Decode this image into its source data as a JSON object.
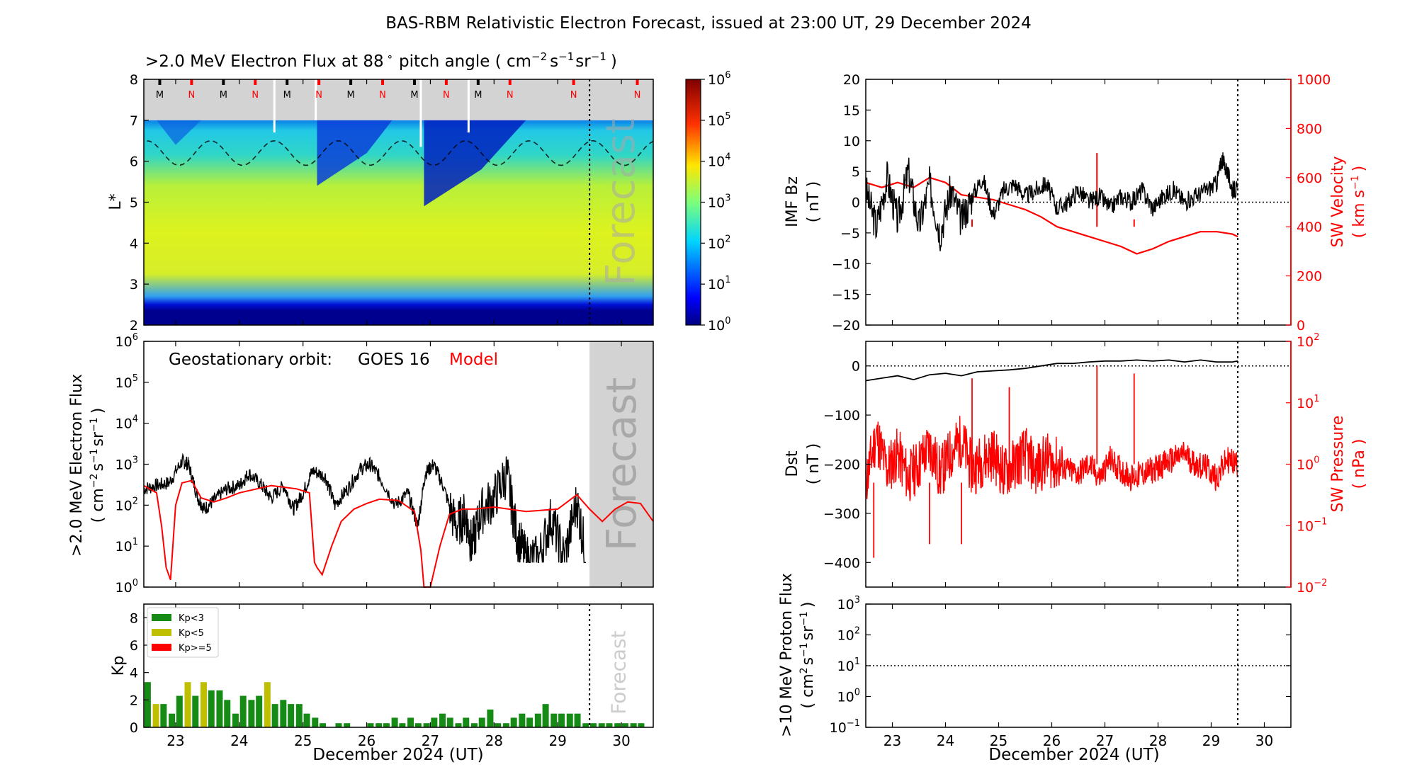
{
  "title": "BAS-RBM Relativistic Electron Forecast, issued at 23:00 UT, 29 December 2024",
  "colors": {
    "observed": "#000000",
    "model": "#ff0000",
    "forecast_shade": "#d3d3d3",
    "kp_low": "#158a15",
    "kp_mid": "#bfbf00",
    "kp_high": "#ff0000",
    "model_label": "#ff0000",
    "forecast_text": "#a9a9a9"
  },
  "chart_data": [
    {
      "id": "lstar",
      "type": "heatmap",
      "title_main": ">2.0 MeV Electron Flux at 88",
      "title_deg": "∘",
      "title_unit": "pitch angle ( cm",
      "title_sup1": "−2",
      "title_mid1": "s",
      "title_sup2": "−1",
      "title_mid2": "sr",
      "title_sup3": "−1",
      "title_end": ")",
      "ylabel": "L*",
      "ylim": [
        2,
        8
      ],
      "yticks": [
        "2",
        "3",
        "4",
        "5",
        "6",
        "7",
        "8"
      ],
      "xlim": [
        22.5,
        30.5
      ],
      "forecast_start": 29.5,
      "forecast_label": "Forecast",
      "orbit_markers": [
        {
          "x": 22.75,
          "label": "M",
          "kind": "M"
        },
        {
          "x": 23.25,
          "label": "N",
          "kind": "N"
        },
        {
          "x": 23.75,
          "label": "M",
          "kind": "M"
        },
        {
          "x": 24.25,
          "label": "N",
          "kind": "N"
        },
        {
          "x": 24.75,
          "label": "M",
          "kind": "M"
        },
        {
          "x": 25.25,
          "label": "N",
          "kind": "N"
        },
        {
          "x": 25.75,
          "label": "M",
          "kind": "M"
        },
        {
          "x": 26.25,
          "label": "N",
          "kind": "N"
        },
        {
          "x": 26.75,
          "label": "M",
          "kind": "M"
        },
        {
          "x": 27.25,
          "label": "N",
          "kind": "N"
        },
        {
          "x": 27.75,
          "label": "M",
          "kind": "M"
        },
        {
          "x": 28.25,
          "label": "N",
          "kind": "N"
        },
        {
          "x": 29.25,
          "label": "N",
          "kind": "N"
        },
        {
          "x": 30.25,
          "label": "N",
          "kind": "N"
        }
      ],
      "colorbar": {
        "label_base": "10",
        "exponents": [
          "0",
          "1",
          "2",
          "3",
          "4",
          "5",
          "6"
        ],
        "range_log10": [
          0,
          6
        ]
      }
    },
    {
      "id": "goes",
      "type": "line",
      "label_orbit": "Geostationary orbit:",
      "label_sat": "GOES 16",
      "label_model": "Model",
      "ylabel_line1": ">2.0 MeV Electron Flux",
      "ylabel_line2": "( cm",
      "ylabel_sup1": "−2",
      "ylabel_s": "s",
      "ylabel_sup2": "−1",
      "ylabel_sr": "sr",
      "ylabel_sup3": "−1",
      "ylabel_end": ")",
      "ylim_log10": [
        0,
        6
      ],
      "y_exponents": [
        "0",
        "1",
        "2",
        "3",
        "4",
        "5",
        "6"
      ],
      "xlim": [
        22.5,
        30.5
      ],
      "forecast_start": 29.5,
      "forecast_label": "Forecast",
      "model_series": {
        "name": "Model",
        "x": [
          22.5,
          22.7,
          22.78,
          22.85,
          22.92,
          23.0,
          23.1,
          23.25,
          23.4,
          23.6,
          23.8,
          24.0,
          24.5,
          24.9,
          25.1,
          25.18,
          25.22,
          25.3,
          25.45,
          25.6,
          25.8,
          26.0,
          26.2,
          26.5,
          26.75,
          26.85,
          26.9,
          27.0,
          27.15,
          27.3,
          27.5,
          27.7,
          28.0,
          28.5,
          29.0,
          29.3,
          29.5,
          29.7,
          29.9,
          30.1,
          30.3,
          30.5
        ],
        "values": [
          300,
          200,
          30,
          3,
          1.5,
          100,
          350,
          400,
          150,
          120,
          150,
          200,
          300,
          250,
          200,
          4,
          3,
          2,
          10,
          40,
          80,
          110,
          140,
          130,
          70,
          8,
          1,
          1,
          10,
          60,
          80,
          80,
          90,
          70,
          80,
          180,
          80,
          40,
          80,
          120,
          110,
          40
        ]
      },
      "observed_series": {
        "name": "GOES 16",
        "x": [
          22.5,
          22.7,
          22.9,
          23.1,
          23.2,
          23.35,
          23.45,
          23.6,
          23.8,
          24.0,
          24.15,
          24.35,
          24.5,
          24.7,
          24.85,
          25.0,
          25.15,
          25.35,
          25.5,
          25.7,
          25.9,
          26.05,
          26.2,
          26.45,
          26.65,
          26.8,
          26.92,
          27.05,
          27.2,
          27.4,
          27.55,
          27.65,
          27.8,
          28.0,
          28.2,
          28.35,
          28.5,
          28.7,
          28.9,
          29.1,
          29.3,
          29.45
        ],
        "values": [
          250,
          300,
          350,
          1200,
          1000,
          150,
          80,
          130,
          250,
          300,
          600,
          300,
          150,
          300,
          80,
          200,
          700,
          500,
          100,
          250,
          750,
          1000,
          500,
          100,
          200,
          30,
          600,
          1000,
          300,
          30,
          60,
          10,
          70,
          150,
          600,
          20,
          5,
          5,
          50,
          5,
          120,
          5
        ]
      }
    },
    {
      "id": "kp",
      "type": "bar",
      "ylabel": "Kp",
      "ylim": [
        0,
        9
      ],
      "yticks": [
        "0",
        "2",
        "4",
        "6",
        "8"
      ],
      "xlim": [
        22.5,
        30.5
      ],
      "forecast_start": 29.5,
      "forecast_label": "Forecast",
      "legend": [
        "Kp<3",
        "Kp<5",
        "Kp>=5"
      ],
      "legend_position": "top-left",
      "bar_width_days": 0.1,
      "x": [
        22.56,
        22.69,
        22.81,
        22.94,
        23.06,
        23.19,
        23.31,
        23.44,
        23.56,
        23.69,
        23.81,
        23.94,
        24.06,
        24.19,
        24.31,
        24.44,
        24.56,
        24.69,
        24.81,
        24.94,
        25.06,
        25.19,
        25.31,
        25.44,
        25.56,
        25.69,
        25.81,
        25.94,
        26.06,
        26.19,
        26.31,
        26.44,
        26.56,
        26.69,
        26.81,
        26.94,
        27.06,
        27.19,
        27.31,
        27.44,
        27.56,
        27.69,
        27.81,
        27.94,
        28.06,
        28.19,
        28.31,
        28.44,
        28.56,
        28.69,
        28.81,
        28.94,
        29.06,
        29.19,
        29.31,
        29.44,
        29.56,
        29.69,
        29.81,
        29.94,
        30.06,
        30.19,
        30.31
      ],
      "values": [
        3.3,
        1.7,
        1.7,
        1.0,
        2.3,
        3.3,
        2.3,
        3.3,
        2.7,
        2.7,
        2.0,
        1.0,
        2.3,
        2.0,
        2.3,
        3.3,
        1.7,
        2.0,
        1.7,
        1.7,
        1.0,
        0.7,
        0.3,
        0.0,
        0.3,
        0.3,
        0.0,
        0.0,
        0.3,
        0.3,
        0.3,
        0.7,
        0.3,
        0.7,
        0.3,
        0.3,
        0.7,
        1.0,
        0.7,
        0.3,
        0.7,
        0.3,
        0.7,
        1.3,
        0.3,
        0.3,
        0.7,
        1.0,
        0.7,
        1.0,
        1.7,
        1.0,
        1.0,
        1.0,
        1.0,
        0.3,
        0.3,
        0.3,
        0.3,
        0.3,
        0.3,
        0.3,
        0.3
      ],
      "categories": [
        "low",
        "mid",
        "low",
        "low",
        "low",
        "mid",
        "low",
        "mid",
        "low",
        "low",
        "low",
        "low",
        "low",
        "low",
        "low",
        "mid",
        "low",
        "low",
        "low",
        "low",
        "low",
        "low",
        "low",
        "low",
        "low",
        "low",
        "low",
        "low",
        "low",
        "low",
        "low",
        "low",
        "low",
        "low",
        "low",
        "low",
        "low",
        "low",
        "low",
        "low",
        "low",
        "low",
        "low",
        "low",
        "low",
        "low",
        "low",
        "low",
        "low",
        "low",
        "low",
        "low",
        "low",
        "low",
        "low",
        "low",
        "low",
        "low",
        "low",
        "low",
        "low",
        "low",
        "low"
      ]
    },
    {
      "id": "imf",
      "type": "line",
      "ylabel_left": "IMF Bz",
      "ylabel_left2": "( nT )",
      "ylim_left": [
        -20,
        20
      ],
      "yticks_left": [
        "−20",
        "−15",
        "−10",
        "−5",
        "0",
        "5",
        "10",
        "15",
        "20"
      ],
      "ylabel_right": "SW Velocity",
      "ylabel_right2": "( km s",
      "ylabel_right_sup": "−1",
      "ylabel_right_end": ")",
      "ylim_right": [
        0,
        1000
      ],
      "yticks_right": [
        "0",
        "200",
        "400",
        "600",
        "800",
        "1000"
      ],
      "xlim": [
        22.5,
        30.5
      ],
      "issue_time": 29.5,
      "bz": {
        "x": [
          22.5,
          22.7,
          22.9,
          23.1,
          23.3,
          23.5,
          23.7,
          23.9,
          24.1,
          24.3,
          24.5,
          24.7,
          24.9,
          25.1,
          25.3,
          25.5,
          25.7,
          25.9,
          26.1,
          26.3,
          26.5,
          26.7,
          26.9,
          27.1,
          27.3,
          27.5,
          27.7,
          27.9,
          28.1,
          28.3,
          28.5,
          28.7,
          28.9,
          29.1,
          29.2,
          29.3,
          29.4,
          29.5
        ],
        "values": [
          2,
          -4,
          4,
          -3,
          5,
          -4,
          3,
          -5,
          2,
          -3,
          1,
          4,
          -2,
          2,
          3,
          1,
          2,
          3,
          -1,
          0,
          2,
          0,
          1,
          -1,
          1,
          0,
          2,
          -1,
          1,
          2,
          0,
          1,
          2,
          3,
          7,
          5,
          2,
          2
        ]
      },
      "velocity": {
        "x": [
          22.5,
          22.8,
          23.1,
          23.4,
          23.7,
          24.0,
          24.3,
          24.6,
          24.9,
          25.2,
          25.5,
          25.8,
          26.1,
          26.4,
          26.7,
          27.0,
          27.3,
          27.6,
          27.9,
          28.2,
          28.5,
          28.8,
          29.1,
          29.4,
          29.5
        ],
        "values": [
          580,
          560,
          580,
          560,
          600,
          580,
          530,
          520,
          510,
          490,
          470,
          440,
          400,
          380,
          360,
          340,
          320,
          290,
          310,
          340,
          360,
          380,
          380,
          370,
          360
        ]
      }
    },
    {
      "id": "dst",
      "type": "line",
      "ylabel_left": "Dst",
      "ylabel_left2": "( nT )",
      "ylim_left": [
        -450,
        50
      ],
      "yticks_left": [
        "−400",
        "−300",
        "−200",
        "−100",
        "0"
      ],
      "ylabel_right": "SW Pressure",
      "ylabel_right2": "( nPa )",
      "ylim_right_log10": [
        -2,
        2
      ],
      "y_right_exponents": [
        "−2",
        "−1",
        "0",
        "1",
        "2"
      ],
      "xlim": [
        22.5,
        30.5
      ],
      "issue_time": 29.5,
      "dst": {
        "x": [
          22.5,
          22.8,
          23.1,
          23.4,
          23.7,
          24.0,
          24.3,
          24.6,
          24.9,
          25.2,
          25.5,
          25.8,
          26.1,
          26.4,
          26.7,
          27.0,
          27.3,
          27.6,
          27.9,
          28.2,
          28.5,
          28.8,
          29.1,
          29.4,
          29.5
        ],
        "values": [
          -30,
          -25,
          -20,
          -28,
          -18,
          -15,
          -20,
          -12,
          -10,
          -8,
          -5,
          0,
          5,
          5,
          8,
          10,
          10,
          12,
          10,
          12,
          8,
          12,
          8,
          8,
          10
        ]
      },
      "pressure": {
        "x": [
          22.5,
          22.7,
          22.9,
          23.1,
          23.3,
          23.5,
          23.7,
          23.9,
          24.1,
          24.3,
          24.5,
          24.7,
          24.9,
          25.1,
          25.3,
          25.5,
          25.7,
          25.9,
          26.1,
          26.3,
          26.5,
          26.7,
          26.9,
          27.1,
          27.3,
          27.5,
          27.7,
          27.9,
          28.1,
          28.3,
          28.5,
          28.7,
          28.9,
          29.1,
          29.3,
          29.5
        ],
        "values": [
          0.5,
          3,
          0.8,
          1.5,
          0.6,
          1.0,
          2.0,
          0.7,
          1.5,
          2.5,
          0.8,
          1.2,
          1.5,
          0.7,
          1.0,
          1.5,
          0.8,
          1.2,
          1.0,
          0.8,
          0.7,
          1.0,
          0.6,
          1.2,
          0.8,
          0.6,
          0.7,
          0.8,
          1.0,
          1.2,
          1.5,
          1.0,
          0.9,
          0.6,
          1.2,
          1.0
        ]
      }
    },
    {
      "id": "proton",
      "type": "line",
      "ylabel_line1": ">10 MeV Proton Flux",
      "ylabel_line2": "( cm",
      "ylabel_sup1": "2",
      "ylabel_s": "s",
      "ylabel_sup2": "−1",
      "ylabel_sr": "sr",
      "ylabel_sup3": "−1",
      "ylabel_end": ")",
      "ylim_log10": [
        -1,
        3
      ],
      "y_exponents": [
        "−1",
        "0",
        "1",
        "2",
        "3"
      ],
      "threshold": 10,
      "xlim": [
        22.5,
        30.5
      ],
      "issue_time": 29.5
    }
  ],
  "xaxis": {
    "ticks": [
      "23",
      "24",
      "25",
      "26",
      "27",
      "28",
      "29",
      "30"
    ],
    "label": "December 2024 (UT)"
  }
}
